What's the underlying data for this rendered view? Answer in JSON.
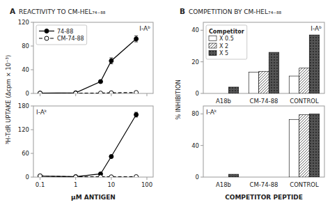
{
  "chart_data": [
    {
      "type": "line",
      "title": "REACTIVITY TO CM-HEL₇₄₋₈₈",
      "annotations": [
        "A",
        "I-Aᵇ"
      ],
      "ylabel": "³H-TdR UPTAKE (Δcpm × 10⁻³)",
      "log": "x",
      "x": [
        0.1,
        1,
        5,
        10,
        50
      ],
      "xlim": [
        0.065,
        150
      ],
      "xticks": [
        0.1,
        1,
        10,
        100
      ],
      "ylim": [
        0,
        120
      ],
      "yticks": [
        0,
        40,
        80,
        120
      ],
      "tick_labels": "y",
      "legend": "upper left",
      "series": [
        {
          "name": "74-88",
          "color": "#000000",
          "marker": "circle",
          "line_style": "solid",
          "values": [
            0.5,
            1.0,
            20.0,
            55.0,
            92.0
          ],
          "error": [
            0.5,
            0.5,
            2.0,
            5.0,
            5.0
          ]
        },
        {
          "name": "CM-74-88",
          "color": "#000000",
          "marker": "open-circle",
          "line_style": "dashed",
          "values": [
            0.3,
            0.3,
            0.5,
            1.0,
            1.5
          ],
          "error": [
            0.2,
            0.2,
            0.3,
            0.3,
            0.5
          ]
        }
      ]
    },
    {
      "type": "line",
      "annotations": [
        "I-Aᵏ"
      ],
      "xlabel": "μM ANTIGEN",
      "log": "x",
      "x": [
        0.1,
        1,
        5,
        10,
        50
      ],
      "xlim": [
        0.065,
        150
      ],
      "xticks": [
        0.1,
        1,
        10,
        100
      ],
      "ylim": [
        0,
        180
      ],
      "yticks": [
        0,
        60,
        120,
        180
      ],
      "series": [
        {
          "color": "#000000",
          "marker": "circle",
          "line_style": "solid",
          "values": [
            2.5,
            1.0,
            8.0,
            52.0,
            158.0
          ],
          "error": [
            1.0,
            0.5,
            1.5,
            3.0,
            6.0
          ]
        },
        {
          "color": "#000000",
          "marker": "open-circle",
          "line_style": "dashed",
          "values": [
            3.0,
            0.5,
            0.5,
            0.5,
            1.0
          ],
          "error": [
            1.5,
            0.3,
            0.3,
            0.3,
            0.3
          ]
        }
      ]
    },
    {
      "type": "bar",
      "title": "COMPETITION BY CM-HEL₇₄₋₈₈",
      "annotations": [
        "B",
        "I-Aᵇ"
      ],
      "ylabel": "% INHIBITION",
      "categories": [
        "A18b",
        "CM-74-88",
        "CONTROL"
      ],
      "ylim": [
        0,
        45
      ],
      "yticks": [
        0,
        20,
        40
      ],
      "legend": "upper left",
      "legend_title": "Competitor",
      "series": [
        {
          "name": "X 0.5",
          "color": "#ffffff",
          "values": [
            0.0,
            13.5,
            11.0
          ]
        },
        {
          "name": "X 2",
          "color": "#ffffff",
          "values": [
            0.0,
            14.0,
            16.0
          ]
        },
        {
          "name": "X 5",
          "color": "#555555",
          "values": [
            4.0,
            26.0,
            37.0
          ]
        }
      ]
    },
    {
      "type": "bar",
      "annotations": [
        "I-Aᵏ"
      ],
      "xlabel": "COMPETITOR PEPTIDE",
      "categories": [
        "A18b",
        "CM-74-88",
        "CONTROL"
      ],
      "ylim": [
        0,
        90
      ],
      "yticks": [
        0,
        40,
        80
      ],
      "series": [
        {
          "color": "#ffffff",
          "values": [
            0.0,
            0.0,
            73.0
          ]
        },
        {
          "color": "#ffffff",
          "values": [
            0.0,
            0.0,
            79.0
          ]
        },
        {
          "color": "#555555",
          "values": [
            3.5,
            0.0,
            80.0
          ]
        }
      ]
    }
  ]
}
